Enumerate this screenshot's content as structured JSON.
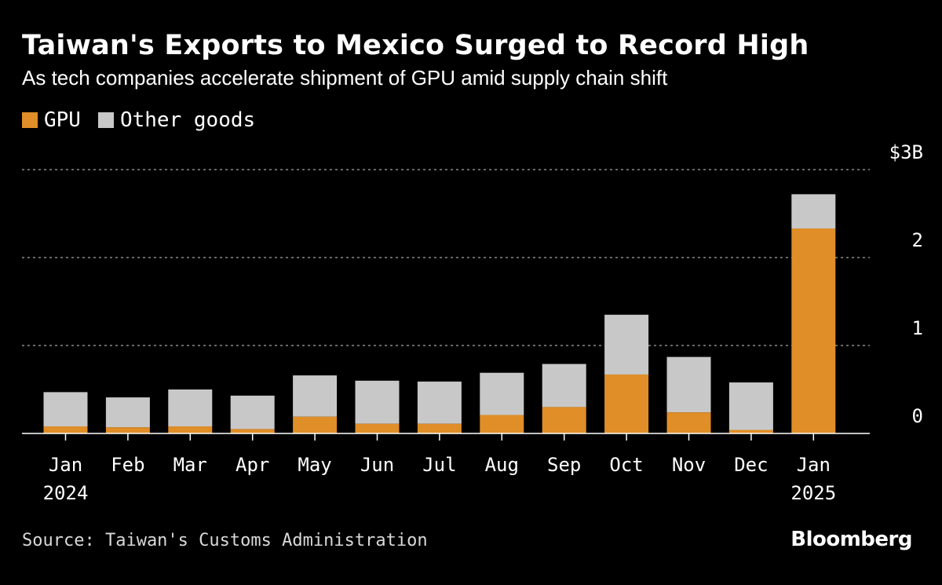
{
  "colors": {
    "gpu": "#e08e28",
    "other": "#c8c8c8",
    "grid": "#8a8a8a",
    "axis": "#ffffff",
    "background": "#000000"
  },
  "chart_data": {
    "type": "bar",
    "stacked": true,
    "title": "Taiwan's Exports to Mexico Surged to Record High",
    "subtitle": "As tech companies accelerate shipment of GPU amid supply chain shift",
    "categories": [
      "Jan 2024",
      "Feb",
      "Mar",
      "Apr",
      "May",
      "Jun",
      "Jul",
      "Aug",
      "Sep",
      "Oct",
      "Nov",
      "Dec",
      "Jan 2025"
    ],
    "tick_labels": [
      [
        "Jan",
        "2024"
      ],
      [
        "Feb"
      ],
      [
        "Mar"
      ],
      [
        "Apr"
      ],
      [
        "May"
      ],
      [
        "Jun"
      ],
      [
        "Jul"
      ],
      [
        "Aug"
      ],
      [
        "Sep"
      ],
      [
        "Oct"
      ],
      [
        "Nov"
      ],
      [
        "Dec"
      ],
      [
        "Jan",
        "2025"
      ]
    ],
    "series": [
      {
        "name": "GPU",
        "values": [
          0.08,
          0.07,
          0.08,
          0.05,
          0.19,
          0.11,
          0.11,
          0.21,
          0.3,
          0.67,
          0.24,
          0.04,
          2.33
        ]
      },
      {
        "name": "Other goods",
        "values": [
          0.39,
          0.34,
          0.42,
          0.38,
          0.47,
          0.49,
          0.48,
          0.48,
          0.49,
          0.68,
          0.63,
          0.54,
          0.39
        ]
      }
    ],
    "ylim": [
      0,
      3
    ],
    "yticks": [
      0,
      1,
      2,
      3
    ],
    "ytick_labels": [
      "0",
      "1",
      "2",
      "$3B"
    ],
    "grid": true,
    "legend_position": "top-left",
    "source": "Source: Taiwan's Customs Administration"
  },
  "brand": "Bloomberg"
}
